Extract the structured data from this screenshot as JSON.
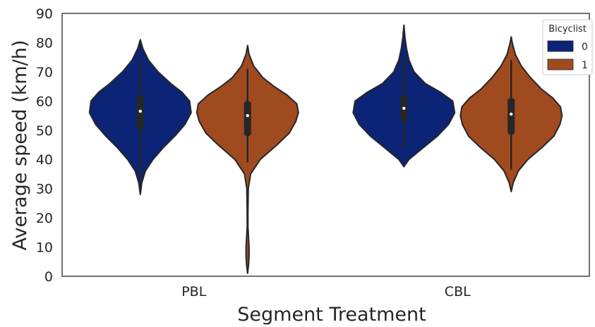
{
  "chart_data": {
    "type": "violin",
    "xlabel": "Segment Treatment",
    "ylabel": "Average speed (km/h)",
    "ylim": [
      0,
      90
    ],
    "yticks": [
      0,
      10,
      20,
      30,
      40,
      50,
      60,
      70,
      80,
      90
    ],
    "categories": [
      "PBL",
      "CBL"
    ],
    "grid": false,
    "legend": {
      "title": "Bicyclist",
      "placement": "top-right"
    },
    "series": [
      {
        "name": "0",
        "color": "#0b2476"
      },
      {
        "name": "1",
        "color": "#a04a1f"
      }
    ],
    "violins": [
      {
        "category": "PBL",
        "series": "0",
        "profile": [
          [
            28,
            0
          ],
          [
            32,
            0.03
          ],
          [
            36,
            0.1
          ],
          [
            40,
            0.25
          ],
          [
            44,
            0.45
          ],
          [
            48,
            0.68
          ],
          [
            52,
            0.88
          ],
          [
            56,
            1.0
          ],
          [
            60,
            0.97
          ],
          [
            63,
            0.82
          ],
          [
            66,
            0.6
          ],
          [
            70,
            0.35
          ],
          [
            74,
            0.16
          ],
          [
            78,
            0.05
          ],
          [
            81,
            0
          ]
        ],
        "median": 56.5,
        "q1": 50,
        "q3": 62,
        "whisker_low": 33,
        "whisker_high": 74
      },
      {
        "category": "PBL",
        "series": "1",
        "profile": [
          [
            1,
            0
          ],
          [
            4,
            0.02
          ],
          [
            7,
            0.03
          ],
          [
            10,
            0.03
          ],
          [
            13,
            0.02
          ],
          [
            17,
            0.008
          ],
          [
            22,
            0.008
          ],
          [
            30,
            0.015
          ],
          [
            35,
            0.06
          ],
          [
            40,
            0.25
          ],
          [
            45,
            0.58
          ],
          [
            49,
            0.82
          ],
          [
            53,
            0.95
          ],
          [
            56,
            1.0
          ],
          [
            59,
            0.97
          ],
          [
            62,
            0.78
          ],
          [
            65,
            0.52
          ],
          [
            68,
            0.3
          ],
          [
            72,
            0.12
          ],
          [
            76,
            0.03
          ],
          [
            79,
            0
          ]
        ],
        "median": 55,
        "q1": 48,
        "q3": 60,
        "whisker_low": 39,
        "whisker_high": 71
      },
      {
        "category": "CBL",
        "series": "0",
        "profile": [
          [
            37.5,
            0
          ],
          [
            40,
            0.1
          ],
          [
            44,
            0.38
          ],
          [
            48,
            0.66
          ],
          [
            52,
            0.88
          ],
          [
            56,
            1.0
          ],
          [
            60,
            0.96
          ],
          [
            63,
            0.72
          ],
          [
            66,
            0.42
          ],
          [
            70,
            0.2
          ],
          [
            74,
            0.1
          ],
          [
            78,
            0.05
          ],
          [
            82,
            0.02
          ],
          [
            86,
            0
          ]
        ],
        "median": 57.5,
        "q1": 53,
        "q3": 62,
        "whisker_low": 44,
        "whisker_high": 75
      },
      {
        "category": "CBL",
        "series": "1",
        "profile": [
          [
            29,
            0
          ],
          [
            32,
            0.04
          ],
          [
            36,
            0.14
          ],
          [
            40,
            0.33
          ],
          [
            44,
            0.6
          ],
          [
            48,
            0.84
          ],
          [
            52,
            0.96
          ],
          [
            55,
            1.0
          ],
          [
            58,
            0.97
          ],
          [
            61,
            0.82
          ],
          [
            64,
            0.6
          ],
          [
            68,
            0.38
          ],
          [
            72,
            0.2
          ],
          [
            76,
            0.08
          ],
          [
            80,
            0.02
          ],
          [
            82,
            0
          ]
        ],
        "median": 55.5,
        "q1": 48.5,
        "q3": 61,
        "whisker_low": 36.5,
        "whisker_high": 74
      }
    ]
  }
}
